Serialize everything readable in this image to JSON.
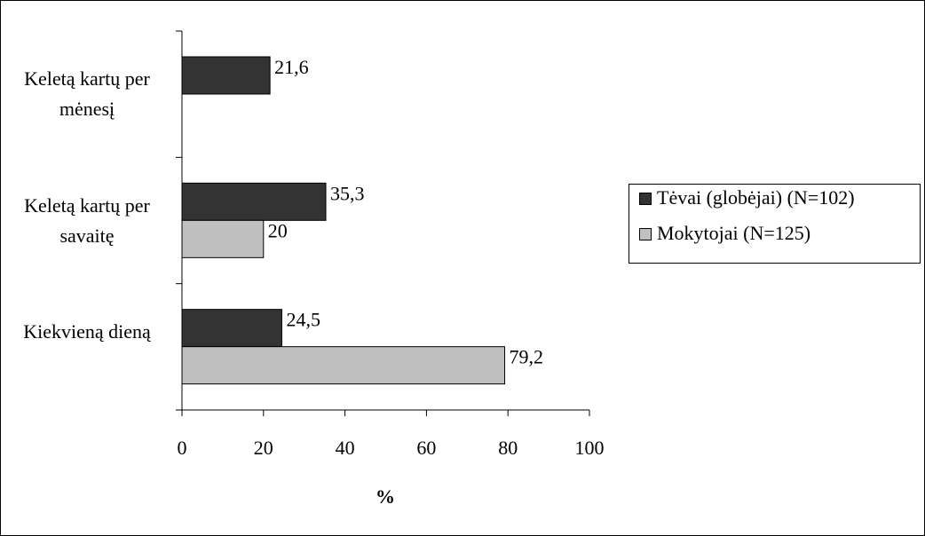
{
  "chart_data": {
    "type": "hbar",
    "categories": [
      "Keletą kartų per mėnesį",
      "Keletą kartų per savaitę",
      "Kiekvieną dieną"
    ],
    "series": [
      {
        "name": "Tėvai (globėjai) (N=102)",
        "color": "#333333",
        "values": [
          21.6,
          35.3,
          24.5
        ],
        "value_labels": [
          "21,6",
          "35,3",
          "24,5"
        ]
      },
      {
        "name": "Mokytojai (N=125)",
        "color": "#c0c0c0",
        "values": [
          null,
          20,
          79.2
        ],
        "value_labels": [
          null,
          "20",
          "79,2"
        ]
      }
    ],
    "xlabel": "%",
    "xlim": [
      0,
      100
    ],
    "xticks": [
      0,
      20,
      40,
      60,
      80,
      100
    ],
    "legend": "right"
  }
}
